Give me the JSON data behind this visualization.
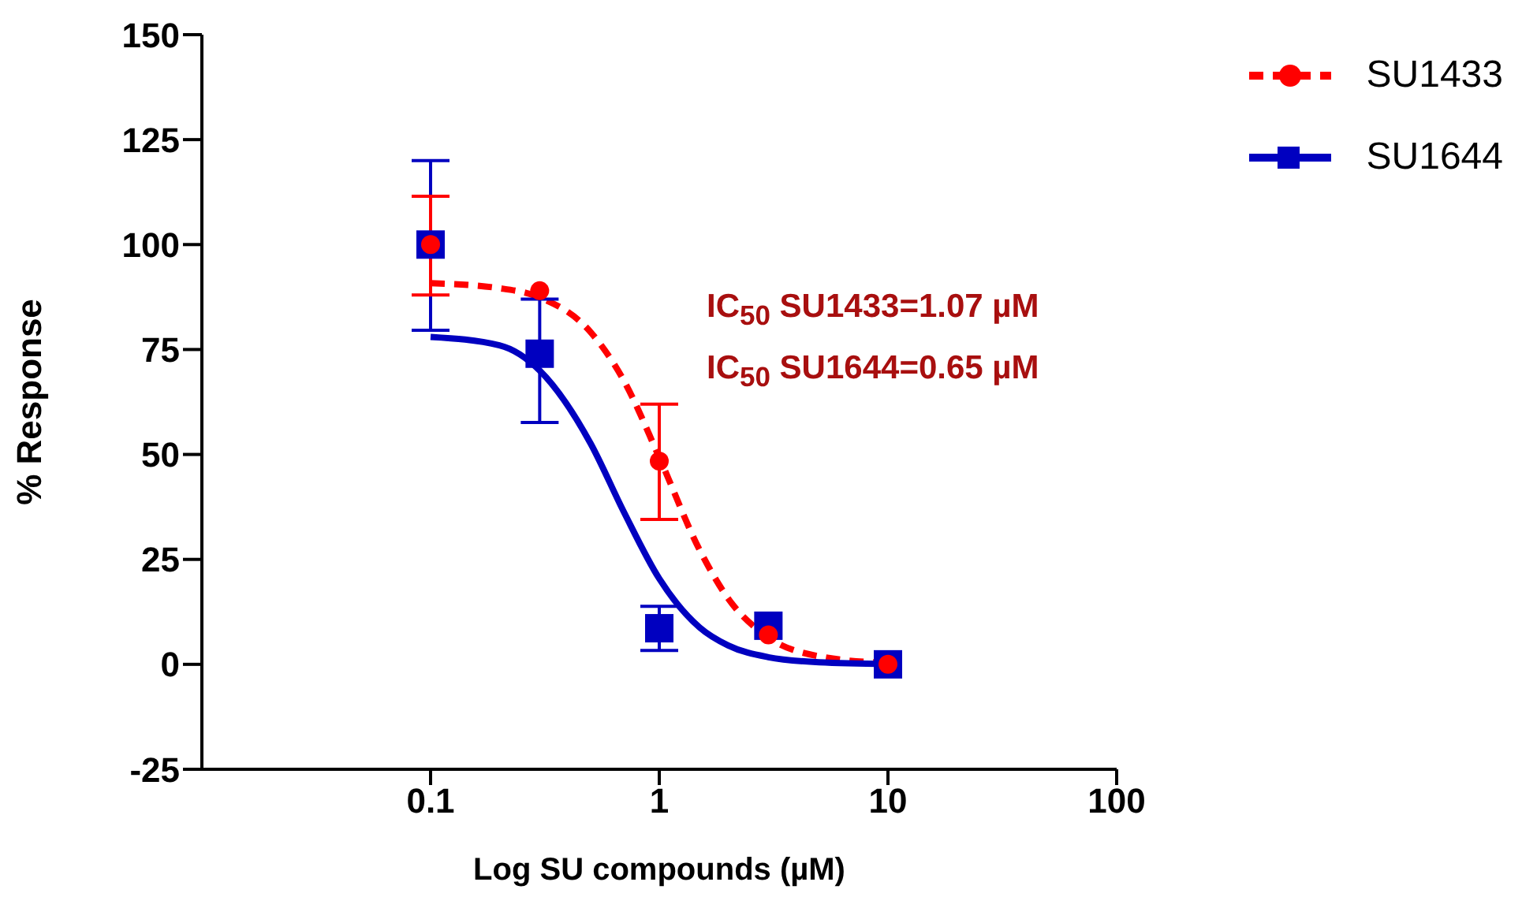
{
  "chart_data": {
    "type": "scatter",
    "xlabel": "Log SU compounds (µM)",
    "ylabel": "% Response",
    "xlim": [
      0.01,
      100
    ],
    "xticks": [
      0.1,
      1,
      10,
      100
    ],
    "log": "x",
    "ylim": [
      -25,
      150
    ],
    "yticks": [
      -25,
      0,
      25,
      50,
      75,
      100,
      125,
      150
    ],
    "legend": "top right",
    "annotations": [
      "IC$_{50}$ SU1433=1.07 µM",
      "IC$_{50}$ SU1644=0.65 µM"
    ],
    "series": [
      {
        "type": "line",
        "color": "#ff0000",
        "line_style": "dashed",
        "marker": "none",
        "x": [
          0.1,
          0.2,
          0.3,
          0.5,
          0.7,
          1,
          1.5,
          2,
          3,
          5,
          10
        ],
        "values": [
          90.8,
          89.6,
          87.4,
          79.2,
          67.6,
          49.3,
          27.3,
          15.7,
          6.4,
          1.9,
          0.3
        ]
      },
      {
        "type": "line",
        "color": "#0000c0",
        "line_style": "solid",
        "marker": "none",
        "x": [
          0.1,
          0.2,
          0.3,
          0.5,
          0.7,
          1,
          1.5,
          2,
          3,
          5,
          10
        ],
        "values": [
          78,
          76,
          70,
          52.7,
          36.3,
          20.4,
          8.8,
          4.5,
          1.7,
          0.5,
          0.1
        ]
      },
      {
        "name": "SU1644",
        "color": "#0000c0",
        "marker": "square",
        "x": [
          0.1,
          0.3,
          1,
          3,
          10
        ],
        "values": [
          100,
          74,
          8.6,
          9.2,
          0
        ],
        "errors": [
          [
            79.6,
            120
          ],
          [
            57.6,
            87
          ],
          [
            3.3,
            13.8
          ],
          null,
          null
        ]
      },
      {
        "name": "SU1433",
        "color": "#ff0000",
        "marker": "circle",
        "x": [
          0.1,
          0.3,
          1,
          3,
          10
        ],
        "values": [
          100,
          89,
          48.4,
          7,
          0
        ],
        "errors": [
          [
            88,
            111.5
          ],
          null,
          [
            34.5,
            62
          ],
          null,
          null
        ]
      }
    ]
  }
}
